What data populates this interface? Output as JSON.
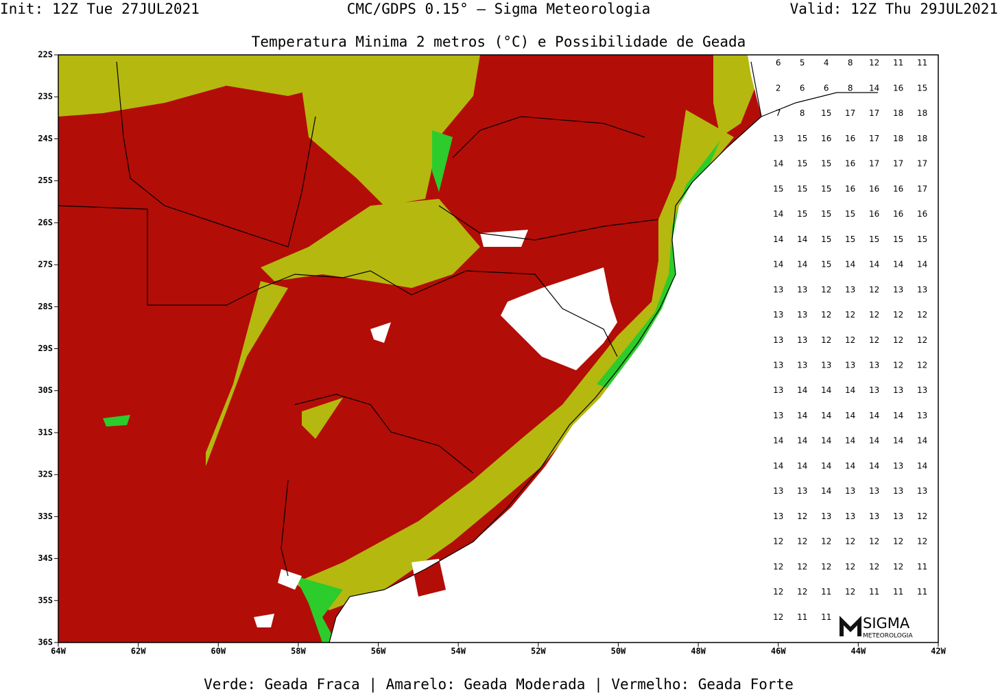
{
  "header": {
    "init": "Init: 12Z Tue 27JUL2021",
    "model": "CMC/GDPS 0.15° — Sigma Meteorologia",
    "valid": "Valid: 12Z Thu 29JUL2021"
  },
  "title": "Temperatura Minima 2 metros (°C) e Possibilidade de Geada",
  "footer": "Verde: Geada Fraca | Amarelo: Geada Moderada | Vermelho: Geada Forte",
  "logo": {
    "name": "SIGMA",
    "sub": "METEOROLOGIA"
  },
  "map": {
    "lonlim": [
      -64,
      -42
    ],
    "latlim": [
      -22,
      -36
    ],
    "lonticks": [
      {
        "value": -64,
        "label": "64W"
      },
      {
        "value": -62,
        "label": "62W"
      },
      {
        "value": -60,
        "label": "60W"
      },
      {
        "value": -58,
        "label": "58W"
      },
      {
        "value": -56,
        "label": "56W"
      },
      {
        "value": -54,
        "label": "54W"
      },
      {
        "value": -52,
        "label": "52W"
      },
      {
        "value": -50,
        "label": "50W"
      },
      {
        "value": -48,
        "label": "48W"
      },
      {
        "value": -46,
        "label": "46W"
      },
      {
        "value": -44,
        "label": "44W"
      },
      {
        "value": -42,
        "label": "42W"
      }
    ],
    "latticks": [
      {
        "value": -22,
        "label": "22S"
      },
      {
        "value": -23,
        "label": "23S"
      },
      {
        "value": -24,
        "label": "24S"
      },
      {
        "value": -25,
        "label": "25S"
      },
      {
        "value": -26,
        "label": "26S"
      },
      {
        "value": -27,
        "label": "27S"
      },
      {
        "value": -28,
        "label": "28S"
      },
      {
        "value": -29,
        "label": "29S"
      },
      {
        "value": -30,
        "label": "30S"
      },
      {
        "value": -31,
        "label": "31S"
      },
      {
        "value": -32,
        "label": "32S"
      },
      {
        "value": -33,
        "label": "33S"
      },
      {
        "value": -34,
        "label": "34S"
      },
      {
        "value": -35,
        "label": "35S"
      },
      {
        "value": -36,
        "label": "36S"
      }
    ],
    "grid_lons": [
      -46,
      -45.4,
      -44.8,
      -44.2,
      -43.6,
      -43,
      -42.4
    ],
    "grid_lats": [
      -22.2,
      -22.8,
      -23.4,
      -24,
      -24.6,
      -25.2,
      -25.8,
      -26.4,
      -27,
      -27.6,
      -28.2,
      -28.8,
      -29.4,
      -30,
      -30.6,
      -31.2,
      -31.8,
      -32.4,
      -33,
      -33.6,
      -34.2,
      -34.8,
      -35.4
    ],
    "temps": [
      [
        6,
        5,
        4,
        8,
        12,
        11,
        11
      ],
      [
        2,
        6,
        6,
        8,
        14,
        16,
        15
      ],
      [
        7,
        8,
        15,
        17,
        17,
        18,
        18
      ],
      [
        13,
        15,
        16,
        16,
        17,
        18,
        18
      ],
      [
        14,
        15,
        15,
        16,
        17,
        17,
        17
      ],
      [
        15,
        15,
        15,
        16,
        16,
        16,
        17
      ],
      [
        14,
        15,
        15,
        15,
        16,
        16,
        16
      ],
      [
        14,
        14,
        15,
        15,
        15,
        15,
        15
      ],
      [
        14,
        14,
        15,
        14,
        14,
        14,
        14
      ],
      [
        13,
        13,
        12,
        13,
        12,
        13,
        13
      ],
      [
        13,
        13,
        12,
        12,
        12,
        12,
        12
      ],
      [
        13,
        13,
        12,
        12,
        12,
        12,
        12
      ],
      [
        13,
        13,
        13,
        13,
        13,
        12,
        12
      ],
      [
        13,
        14,
        14,
        14,
        13,
        13,
        13
      ],
      [
        13,
        14,
        14,
        14,
        14,
        14,
        13
      ],
      [
        14,
        14,
        14,
        14,
        14,
        14,
        14
      ],
      [
        14,
        14,
        14,
        14,
        14,
        13,
        14
      ],
      [
        13,
        13,
        14,
        13,
        13,
        13,
        13
      ],
      [
        13,
        12,
        13,
        13,
        13,
        13,
        12
      ],
      [
        12,
        12,
        12,
        12,
        12,
        12,
        12
      ],
      [
        12,
        12,
        12,
        12,
        12,
        12,
        11
      ],
      [
        12,
        12,
        11,
        12,
        11,
        11,
        11
      ],
      [
        12,
        11,
        11,
        null,
        null,
        null,
        null
      ]
    ],
    "colors": {
      "strong": "#b30d07",
      "moderate": "#b5b80f",
      "weak": "#2ccc2c"
    }
  }
}
